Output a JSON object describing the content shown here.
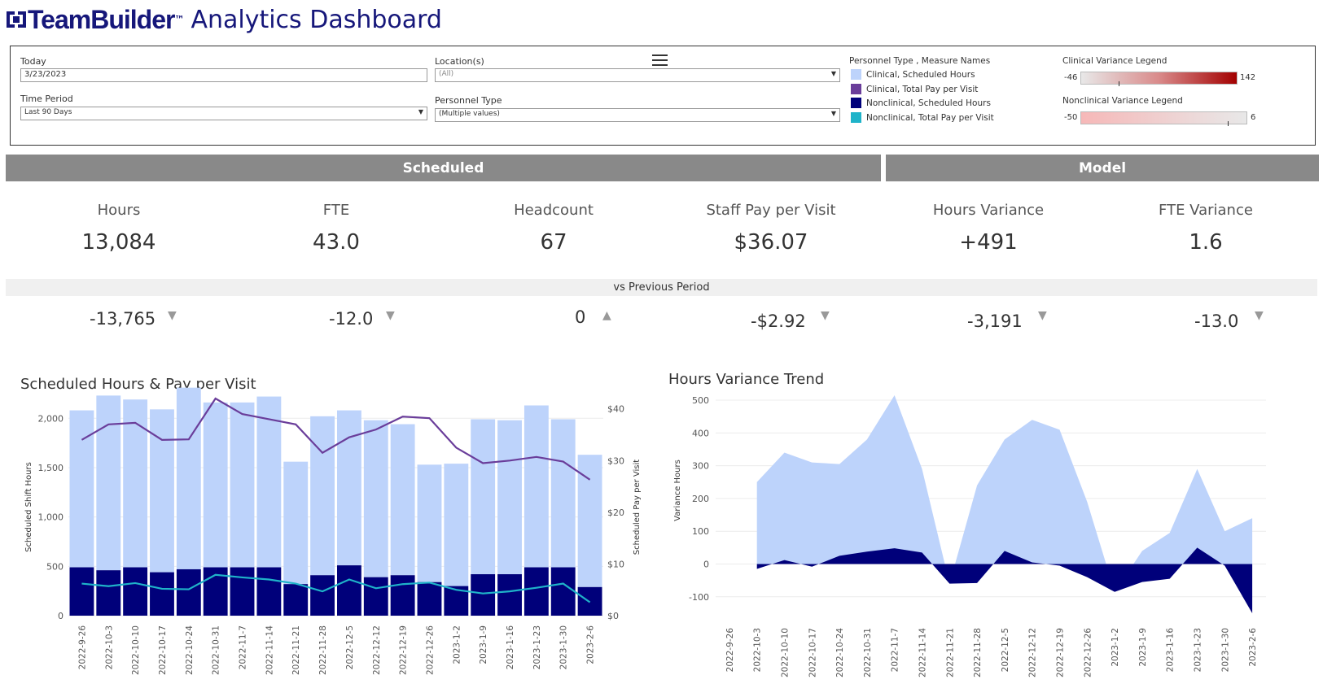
{
  "header": {
    "brand": "TeamBuilder",
    "tm": "™",
    "title": "Analytics Dashboard"
  },
  "filters": {
    "today_label": "Today",
    "today_value": "3/23/2023",
    "time_label": "Time Period",
    "time_value": "Last 90 Days",
    "location_label": "Location(s)",
    "location_value": "(All)",
    "ptype_label": "Personnel Type",
    "ptype_value": "(Multiple values)"
  },
  "legend": {
    "title": "Personnel Type , Measure Names",
    "items": [
      {
        "label": "Clinical, Scheduled Hours",
        "color": "#bdd3fb"
      },
      {
        "label": "Clinical, Total Pay per Visit",
        "color": "#6a3d9a"
      },
      {
        "label": "Nonclinical, Scheduled Hours",
        "color": "#00007a"
      },
      {
        "label": "Nonclinical, Total Pay per Visit",
        "color": "#1fb3c9"
      }
    ],
    "clinical_title": "Clinical Variance Legend",
    "clinical_min": "-46",
    "clinical_max": "142",
    "nonclinical_title": "Nonclinical Variance Legend",
    "nonclinical_min": "-50",
    "nonclinical_max": "6"
  },
  "banners": {
    "scheduled": "Scheduled",
    "model": "Model"
  },
  "kpis": [
    {
      "label": "Hours",
      "value": "13,084",
      "delta": "-13,765",
      "dir": "▼"
    },
    {
      "label": "FTE",
      "value": "43.0",
      "delta": "-12.0",
      "dir": "▼"
    },
    {
      "label": "Headcount",
      "value": "67",
      "delta": "0",
      "dir": "▲"
    },
    {
      "label": "Staff Pay per Visit",
      "value": "$36.07",
      "delta": "-$2.92",
      "dir": "▼"
    },
    {
      "label": "Hours Variance",
      "value": "+491",
      "delta": "-3,191",
      "dir": "▼"
    },
    {
      "label": "FTE Variance",
      "value": "1.6",
      "delta": "-13.0",
      "dir": "▼"
    }
  ],
  "vs_label": "vs Previous Period",
  "chart_data": [
    {
      "type": "bar",
      "title": "Scheduled Hours & Pay per Visit",
      "ylabel": "Scheduled Shift Hours",
      "y2label": "Scheduled Pay per Visit",
      "ylim": [
        0,
        2200
      ],
      "y2lim": [
        0,
        42
      ],
      "yticks": [
        "0",
        "500",
        "1,000",
        "1,500",
        "2,000"
      ],
      "y2ticks": [
        "$0",
        "$10",
        "$20",
        "$30",
        "$40"
      ],
      "categories": [
        "2022-9-26",
        "2022-10-3",
        "2022-10-10",
        "2022-10-17",
        "2022-10-24",
        "2022-10-31",
        "2022-11-7",
        "2022-11-14",
        "2022-11-21",
        "2022-11-28",
        "2022-12-5",
        "2022-12-12",
        "2022-12-19",
        "2022-12-26",
        "2023-1-2",
        "2023-1-9",
        "2023-1-16",
        "2023-1-23",
        "2023-1-30",
        "2023-2-6"
      ],
      "series": [
        {
          "name": "Clinical, Scheduled Hours",
          "kind": "bar-total",
          "values": [
            2080,
            2230,
            2190,
            2090,
            2310,
            2160,
            2160,
            2220,
            1560,
            2020,
            2080,
            1980,
            1940,
            1530,
            1540,
            1990,
            1980,
            2130,
            1990,
            1630
          ]
        },
        {
          "name": "Nonclinical, Scheduled Hours",
          "kind": "bar",
          "values": [
            490,
            460,
            490,
            440,
            470,
            490,
            490,
            490,
            320,
            410,
            510,
            390,
            410,
            340,
            300,
            420,
            420,
            490,
            490,
            290
          ]
        },
        {
          "name": "Clinical, Total Pay per Visit",
          "kind": "line",
          "values": [
            34,
            37,
            37.3,
            34,
            34.1,
            42,
            39,
            38,
            37,
            31.5,
            34.5,
            36,
            38.5,
            38.2,
            32.5,
            29.5,
            30,
            30.7,
            29.8,
            26.3
          ]
        },
        {
          "name": "Nonclinical, Total Pay per Visit",
          "kind": "line",
          "values": [
            6.2,
            5.7,
            6.3,
            5.2,
            5.1,
            7.9,
            7.4,
            7,
            6.2,
            4.7,
            7,
            5.3,
            6.1,
            6.4,
            5,
            4.3,
            4.7,
            5.4,
            6.2,
            2.6
          ]
        }
      ]
    },
    {
      "type": "area",
      "title": "Hours Variance Trend",
      "ylabel": "Variance Hours",
      "ylim": [
        -170,
        520
      ],
      "yticks": [
        "-100",
        "0",
        "100",
        "200",
        "300",
        "400",
        "500"
      ],
      "categories": [
        "2022-9-26",
        "2022-10-3",
        "2022-10-10",
        "2022-10-17",
        "2022-10-24",
        "2022-10-31",
        "2022-11-7",
        "2022-11-14",
        "2022-11-21",
        "2022-11-28",
        "2022-12-5",
        "2022-12-12",
        "2022-12-19",
        "2022-12-26",
        "2023-1-2",
        "2023-1-9",
        "2023-1-16",
        "2023-1-23",
        "2023-1-30",
        "2023-2-6"
      ],
      "series": [
        {
          "name": "Clinical",
          "values": [
            null,
            250,
            340,
            310,
            305,
            380,
            515,
            290,
            -60,
            240,
            380,
            440,
            410,
            190,
            -85,
            40,
            95,
            290,
            100,
            140
          ]
        },
        {
          "name": "Nonclinical",
          "values": [
            null,
            -15,
            12,
            -8,
            25,
            38,
            48,
            35,
            -60,
            -58,
            40,
            5,
            -5,
            -40,
            -85,
            -55,
            -45,
            50,
            -5,
            -150
          ]
        }
      ]
    }
  ]
}
